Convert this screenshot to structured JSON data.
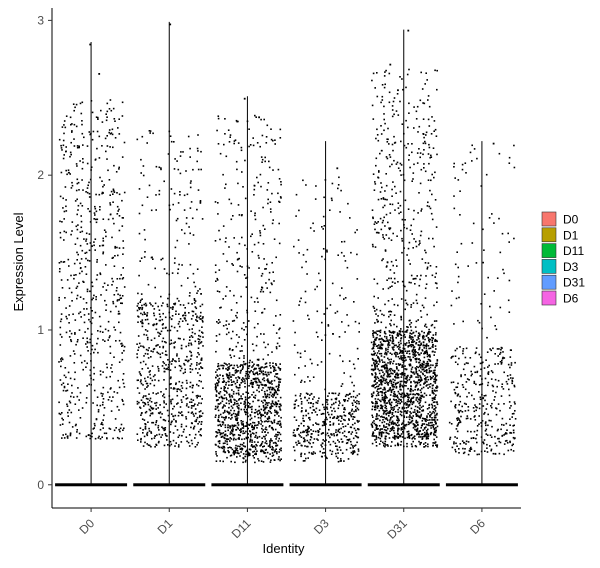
{
  "chart_data": {
    "type": "violin-jitter",
    "title": "",
    "xlabel": "Identity",
    "ylabel": "Expression Level",
    "categories": [
      "D0",
      "D1",
      "D11",
      "D3",
      "D31",
      "D6"
    ],
    "ylim": [
      -0.15,
      3.08
    ],
    "yticks": [
      0,
      1,
      2,
      3
    ],
    "grid": false,
    "legend": {
      "placement": "right",
      "entries": [
        {
          "label": "D0",
          "color": "#F8766D"
        },
        {
          "label": "D1",
          "color": "#B79F00"
        },
        {
          "label": "D11",
          "color": "#00BA38"
        },
        {
          "label": "D3",
          "color": "#00BFC4"
        },
        {
          "label": "D31",
          "color": "#619CFF"
        },
        {
          "label": "D6",
          "color": "#F564E3"
        }
      ]
    },
    "groups": [
      {
        "name": "D0",
        "max": 2.86,
        "jitter_points": 640,
        "expressed_profile": {
          "min": 0.25,
          "max": 2.55,
          "bulk_range": [
            0.3,
            2.5
          ],
          "dense_range": [
            0.3,
            2.5
          ]
        },
        "outliers": [
          [
            -0.05,
            2.85
          ],
          [
            0.2,
            2.66
          ]
        ]
      },
      {
        "name": "D1",
        "max": 2.99,
        "jitter_points": 760,
        "expressed_profile": {
          "min": 0.22,
          "max": 2.33,
          "bulk_range": [
            0.25,
            2.3
          ],
          "dense_range": [
            0.3,
            1.2
          ]
        },
        "outliers": [
          [
            0.0,
            2.98
          ]
        ]
      },
      {
        "name": "D11",
        "max": 2.51,
        "jitter_points": 1250,
        "expressed_profile": {
          "min": 0.15,
          "max": 2.5,
          "bulk_range": [
            0.15,
            2.4
          ],
          "dense_range": [
            0.2,
            0.8
          ]
        },
        "outliers": [
          [
            -0.1,
            2.5
          ],
          [
            0.3,
            2.38
          ]
        ]
      },
      {
        "name": "D3",
        "max": 2.22,
        "jitter_points": 520,
        "expressed_profile": {
          "min": 0.15,
          "max": 2.2,
          "bulk_range": [
            0.15,
            2.0
          ],
          "dense_range": [
            0.2,
            0.6
          ]
        },
        "outliers": [
          [
            0.3,
            2.05
          ]
        ]
      },
      {
        "name": "D31",
        "max": 2.94,
        "jitter_points": 1900,
        "expressed_profile": {
          "min": 0.25,
          "max": 2.94,
          "bulk_range": [
            0.25,
            2.7
          ],
          "dense_range": [
            0.3,
            1.0
          ]
        },
        "outliers": [
          [
            0.1,
            2.94
          ],
          [
            -0.4,
            2.72
          ]
        ]
      },
      {
        "name": "D6",
        "max": 2.22,
        "jitter_points": 420,
        "expressed_profile": {
          "min": 0.2,
          "max": 2.22,
          "bulk_range": [
            0.2,
            2.2
          ],
          "dense_range": [
            0.2,
            0.9
          ]
        },
        "outliers": [
          [
            0.3,
            2.21
          ]
        ]
      }
    ]
  }
}
